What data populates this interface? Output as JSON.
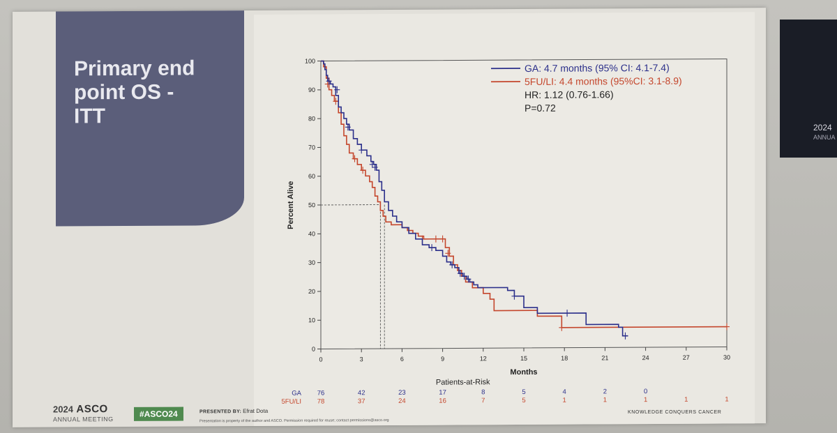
{
  "slide": {
    "title": "Primary end\npoint OS -\nITT",
    "footer": {
      "logo_year": "2024",
      "logo_name": "ASCO",
      "logo_sub": "ANNUAL MEETING",
      "hashtag": "#ASCO24",
      "presenter_label": "PRESENTED BY:",
      "presenter_name": "Efrat Dota",
      "disclaimer": "Presentation is property of the author and ASCO. Permission required for reuse; contact permissions@asco.org",
      "tagline": "KNOWLEDGE CONQUERS CANCER"
    },
    "side_screen": {
      "year": "2024",
      "sub": "ANNUA"
    }
  },
  "colors": {
    "ga": "#2b2f8a",
    "fu": "#c4462c",
    "title_panel": "#5b5e7a"
  },
  "chart_data": {
    "type": "line",
    "subtype": "kaplan-meier",
    "xlabel": "Months",
    "ylabel": "Percent Alive",
    "xlim": [
      0,
      30
    ],
    "ylim": [
      0,
      100
    ],
    "xticks": [
      0,
      3,
      6,
      9,
      12,
      15,
      18,
      21,
      24,
      27,
      30
    ],
    "yticks": [
      0,
      10,
      20,
      30,
      40,
      50,
      60,
      70,
      80,
      90,
      100
    ],
    "grid": false,
    "legend_position": "top-right",
    "annotations": {
      "hr": "HR: 1.12 (0.76-1.66)",
      "p": "P=0.72"
    },
    "median_reference": {
      "y": 50,
      "x": [
        4.4,
        4.7
      ]
    },
    "series": [
      {
        "name": "GA",
        "legend": "GA: 4.7 months (95% CI: 4.1-7.4)",
        "points": [
          [
            0,
            100
          ],
          [
            0.2,
            99
          ],
          [
            0.3,
            97
          ],
          [
            0.4,
            95
          ],
          [
            0.5,
            93
          ],
          [
            0.7,
            92
          ],
          [
            0.9,
            91
          ],
          [
            1.1,
            88
          ],
          [
            1.3,
            84
          ],
          [
            1.5,
            82
          ],
          [
            1.7,
            80
          ],
          [
            1.9,
            78
          ],
          [
            2.1,
            76
          ],
          [
            2.4,
            73
          ],
          [
            2.7,
            71
          ],
          [
            3,
            69
          ],
          [
            3.4,
            67
          ],
          [
            3.7,
            65
          ],
          [
            3.9,
            64
          ],
          [
            4.1,
            62
          ],
          [
            4.3,
            58
          ],
          [
            4.5,
            55
          ],
          [
            4.7,
            51
          ],
          [
            5.0,
            48
          ],
          [
            5.3,
            46
          ],
          [
            5.6,
            44
          ],
          [
            6.0,
            42
          ],
          [
            6.5,
            40
          ],
          [
            7.0,
            38
          ],
          [
            7.5,
            36
          ],
          [
            8.0,
            35
          ],
          [
            8.5,
            34
          ],
          [
            9.0,
            32
          ],
          [
            9.3,
            30
          ],
          [
            9.6,
            29
          ],
          [
            9.9,
            28
          ],
          [
            10.2,
            26
          ],
          [
            10.5,
            25
          ],
          [
            10.8,
            24
          ],
          [
            11.0,
            23
          ],
          [
            11.3,
            22
          ],
          [
            11.6,
            21
          ],
          [
            13.8,
            20
          ],
          [
            14.3,
            18
          ],
          [
            15.0,
            14
          ],
          [
            16.0,
            12
          ],
          [
            17.5,
            12
          ],
          [
            19.6,
            8
          ],
          [
            22.0,
            7
          ],
          [
            22.3,
            4
          ],
          [
            22.7,
            4
          ]
        ],
        "censored": [
          [
            0.6,
            93
          ],
          [
            1.2,
            90
          ],
          [
            2.0,
            77
          ],
          [
            3.0,
            69
          ],
          [
            3.8,
            64
          ],
          [
            4.0,
            63
          ],
          [
            8.2,
            35
          ],
          [
            9.7,
            29
          ],
          [
            10.3,
            26
          ],
          [
            10.6,
            25
          ],
          [
            10.9,
            24
          ],
          [
            14.3,
            18
          ],
          [
            18.2,
            12
          ],
          [
            22.5,
            4
          ]
        ]
      },
      {
        "name": "5FU/LI",
        "legend": "5FU/LI: 4.4 months (95%CI: 3.1-8.9)",
        "points": [
          [
            0,
            100
          ],
          [
            0.2,
            98
          ],
          [
            0.4,
            94
          ],
          [
            0.6,
            90
          ],
          [
            0.8,
            88
          ],
          [
            1.0,
            86
          ],
          [
            1.3,
            82
          ],
          [
            1.5,
            78
          ],
          [
            1.7,
            74
          ],
          [
            1.9,
            71
          ],
          [
            2.1,
            68
          ],
          [
            2.4,
            66
          ],
          [
            2.7,
            64
          ],
          [
            3.0,
            62
          ],
          [
            3.3,
            60
          ],
          [
            3.6,
            58
          ],
          [
            3.8,
            56
          ],
          [
            4.0,
            53
          ],
          [
            4.2,
            51
          ],
          [
            4.4,
            48
          ],
          [
            4.6,
            46
          ],
          [
            4.8,
            44
          ],
          [
            5.2,
            43
          ],
          [
            5.6,
            43
          ],
          [
            6.0,
            42
          ],
          [
            6.4,
            41
          ],
          [
            6.8,
            40
          ],
          [
            7.2,
            39
          ],
          [
            7.6,
            38
          ],
          [
            8.0,
            38
          ],
          [
            9.0,
            38
          ],
          [
            9.2,
            35
          ],
          [
            9.5,
            32
          ],
          [
            9.8,
            29
          ],
          [
            10.1,
            27
          ],
          [
            10.4,
            25
          ],
          [
            10.7,
            23
          ],
          [
            11.2,
            21
          ],
          [
            12.0,
            19
          ],
          [
            12.5,
            17
          ],
          [
            12.8,
            13
          ],
          [
            16.0,
            11
          ],
          [
            17.8,
            7
          ],
          [
            30,
            7
          ]
        ],
        "censored": [
          [
            0.5,
            92
          ],
          [
            1.1,
            86
          ],
          [
            2.5,
            66
          ],
          [
            3.1,
            62
          ],
          [
            7.5,
            38
          ],
          [
            8.5,
            38
          ],
          [
            9.0,
            38
          ],
          [
            9.4,
            33
          ],
          [
            17.8,
            7
          ],
          [
            30,
            7
          ]
        ]
      }
    ],
    "at_risk": {
      "title": "Patients-at-Risk",
      "times": [
        0,
        3,
        6,
        9,
        12,
        15,
        18,
        21,
        24,
        27,
        30
      ],
      "rows": [
        {
          "label": "GA",
          "values": [
            "76",
            "42",
            "23",
            "17",
            "8",
            "5",
            "4",
            "2",
            "0",
            "",
            ""
          ]
        },
        {
          "label": "5FU/LI",
          "values": [
            "78",
            "37",
            "24",
            "16",
            "7",
            "5",
            "1",
            "1",
            "1",
            "1",
            "1"
          ]
        }
      ]
    }
  }
}
